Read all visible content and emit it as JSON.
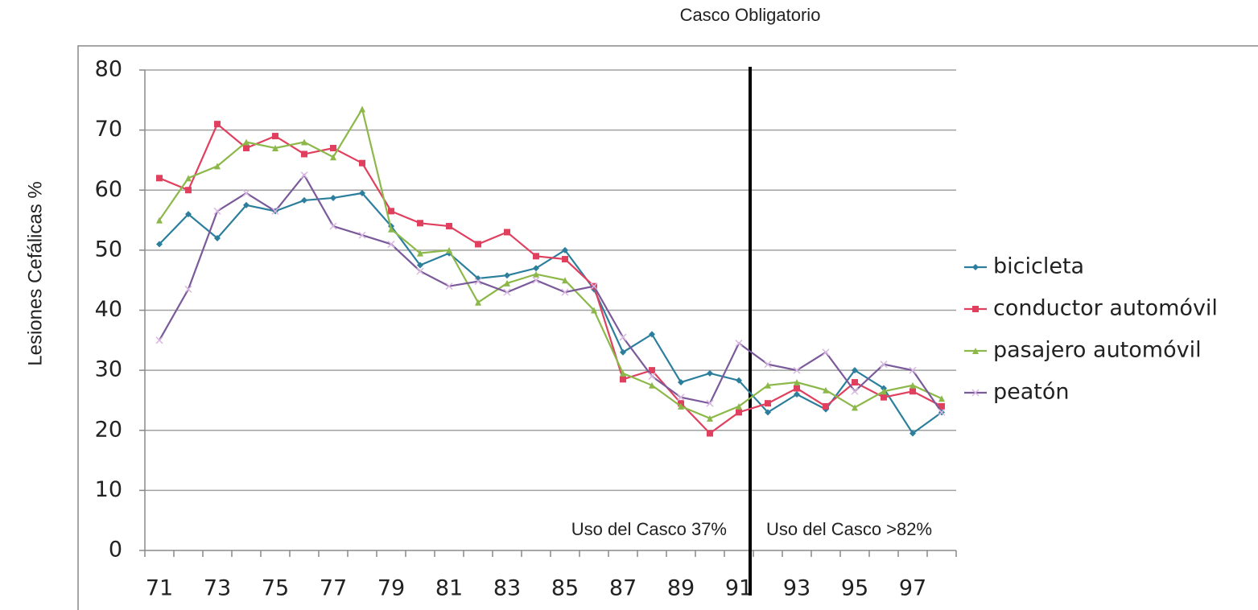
{
  "chart_data": {
    "type": "line",
    "title": "Casco Obligatorio",
    "y_label": "Lesiones Cefálicas %",
    "annotations": [
      "Uso del Casco 37%",
      "Uso del Casco >82%"
    ],
    "categories": [
      "71",
      null,
      "73",
      null,
      "75",
      null,
      "77",
      null,
      "79",
      null,
      "81",
      null,
      "83",
      null,
      "85",
      null,
      "87",
      null,
      "89",
      null,
      "91",
      null,
      "93",
      null,
      "95",
      null,
      "97",
      null
    ],
    "series": [
      {
        "name": "bicicleta",
        "color": "#2b7f9c",
        "marker": "diamond",
        "values": [
          51,
          56,
          52,
          57.5,
          56.5,
          58.3,
          58.7,
          59.5,
          54,
          47.5,
          49.5,
          45.3,
          45.8,
          47,
          50,
          43.5,
          33,
          36,
          28,
          29.5,
          28.3,
          23,
          26,
          23.5,
          30,
          27,
          19.5,
          23
        ]
      },
      {
        "name": "conductor automóvil",
        "color": "#e0405e",
        "marker": "square",
        "values": [
          62,
          60,
          71,
          67,
          69,
          66,
          67,
          64.5,
          56.5,
          54.5,
          54,
          51,
          53,
          49,
          48.5,
          44,
          28.5,
          30,
          24.5,
          19.5,
          23,
          24.5,
          27,
          24,
          28,
          25.5,
          26.5,
          24
        ]
      },
      {
        "name": "pasajero automóvil",
        "color": "#8cb84a",
        "marker": "triangle",
        "values": [
          55,
          62,
          64,
          68,
          67,
          68,
          65.5,
          73.5,
          53.5,
          49.5,
          50,
          41.3,
          44.5,
          46,
          45,
          40,
          29.5,
          27.5,
          24,
          22,
          24,
          27.5,
          28,
          26.7,
          23.8,
          26.5,
          27.5,
          25.3
        ]
      },
      {
        "name": "peatón",
        "color": "#7a5a9a",
        "marker": "x",
        "values": [
          35,
          43.5,
          56.5,
          59.5,
          56.5,
          62.5,
          54,
          52.5,
          51,
          46.5,
          44,
          44.8,
          43,
          45,
          43,
          44,
          35.5,
          29,
          25.5,
          24.5,
          34.5,
          31,
          30,
          33,
          26.5,
          31,
          30,
          23
        ]
      }
    ],
    "ylim": [
      0,
      80
    ],
    "yticks": [
      0,
      10,
      20,
      30,
      40,
      50,
      60,
      70,
      80
    ],
    "grid": true,
    "legend": "right"
  }
}
